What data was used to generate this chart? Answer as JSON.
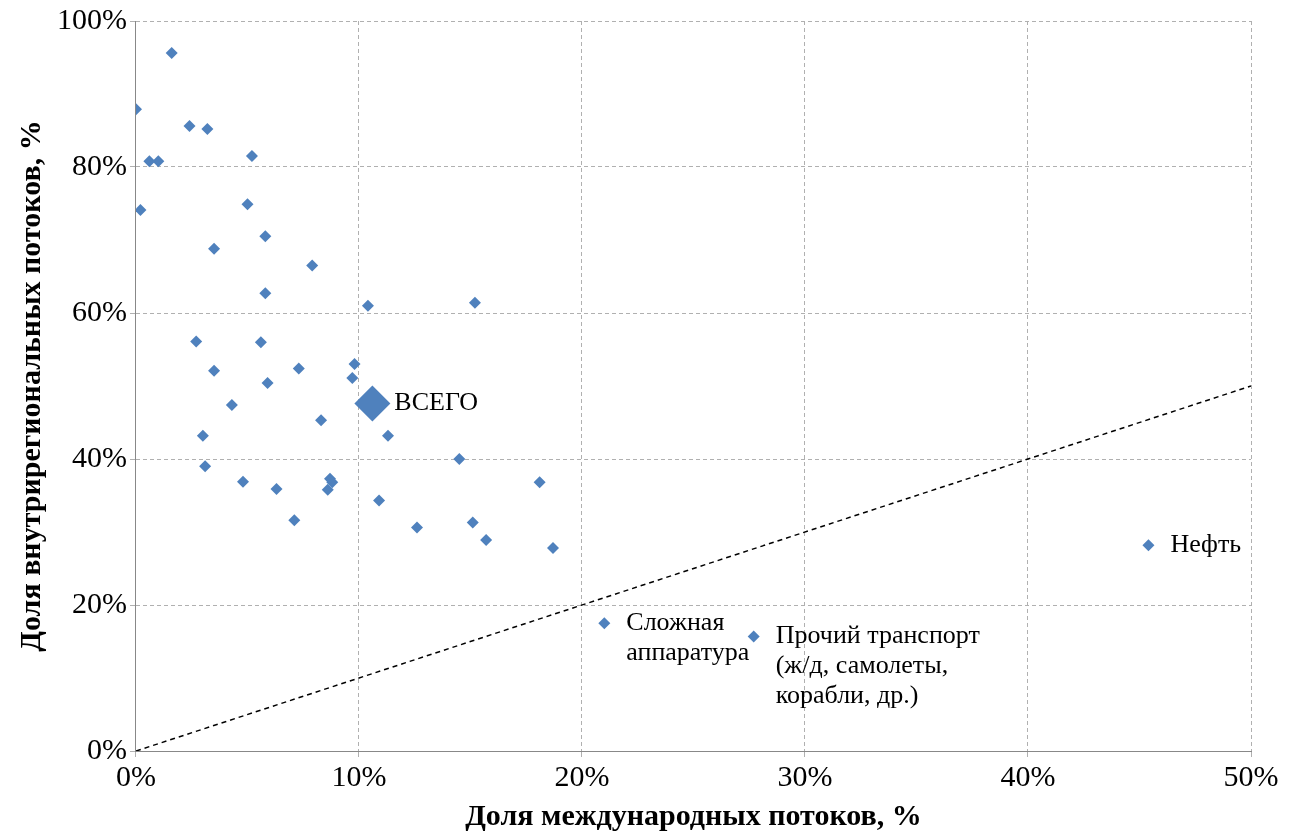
{
  "chart_data": {
    "type": "scatter",
    "xlabel": "Доля международных потоков, %",
    "ylabel": "Доля внутрирегиональных потоков, %",
    "xlim": [
      0,
      50
    ],
    "ylim": [
      0,
      100
    ],
    "xticks": [
      {
        "value": 0,
        "label": "0%"
      },
      {
        "value": 10,
        "label": "10%"
      },
      {
        "value": 20,
        "label": "20%"
      },
      {
        "value": 30,
        "label": "30%"
      },
      {
        "value": 40,
        "label": "40%"
      },
      {
        "value": 50,
        "label": "50%"
      }
    ],
    "yticks": [
      {
        "value": 0,
        "label": "0%"
      },
      {
        "value": 20,
        "label": "20%"
      },
      {
        "value": 40,
        "label": "40%"
      },
      {
        "value": 60,
        "label": "60%"
      },
      {
        "value": 80,
        "label": "80%"
      },
      {
        "value": 100,
        "label": "100%"
      }
    ],
    "grid": true,
    "legend": false,
    "marker": "diamond",
    "series": [
      {
        "color": "#4f81bd",
        "x": [
          1.6,
          0,
          2.4,
          3.2,
          5.2,
          0.6,
          1.0,
          0.2,
          5.0,
          5.8,
          3.5,
          7.9,
          5.8,
          10.4,
          15.2,
          2.7,
          5.6,
          3.5,
          7.3,
          9.8,
          9.7,
          5.9,
          4.3,
          8.3,
          11.3,
          3.0,
          14.5,
          3.1,
          4.8,
          6.3,
          8.7,
          8.8,
          8.6,
          10.9,
          7.1,
          12.6,
          15.1,
          15.7,
          18.1,
          18.7,
          21.0,
          27.7,
          45.4
        ],
        "values": [
          95.6,
          87.9,
          85.6,
          85.2,
          81.5,
          80.8,
          80.8,
          74.1,
          74.9,
          70.5,
          68.8,
          66.5,
          62.7,
          61.0,
          61.4,
          56.1,
          56.0,
          52.1,
          52.4,
          53.0,
          51.1,
          50.4,
          47.4,
          45.3,
          43.2,
          43.2,
          40.0,
          39.0,
          36.9,
          35.9,
          37.3,
          36.8,
          35.8,
          34.3,
          31.6,
          30.6,
          31.3,
          28.9,
          36.8,
          27.8,
          17.5,
          15.7,
          28.2
        ]
      },
      {
        "color": "#4f81bd",
        "x": [
          10.6
        ],
        "values": [
          47.6
        ]
      },
      {
        "type": "line",
        "color": "#000000",
        "x": [
          0,
          50
        ],
        "values": [
          0,
          50
        ],
        "marker": "none",
        "line_style": "dashed"
      }
    ],
    "annotations": [
      {
        "text": "ВСЕГО",
        "x": 10.6,
        "y": 47.6
      },
      {
        "text": "Нефть",
        "x": 45.4,
        "y": 28.2
      },
      {
        "text": "Сложная\nаппаратура",
        "x": 21.0,
        "y": 17.5
      },
      {
        "text": "Прочий транспорт\n(ж/д, самолеты,\nкорабли, др.)",
        "x": 27.7,
        "y": 15.7
      }
    ]
  }
}
